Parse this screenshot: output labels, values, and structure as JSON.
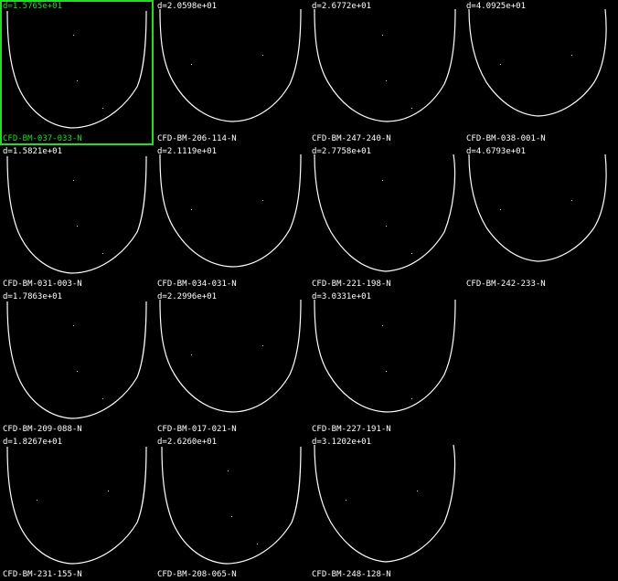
{
  "colors": {
    "background": "#000000",
    "curve": "#ffffff",
    "text": "#ffffff",
    "selected": "#22dd22"
  },
  "selected_index": 0,
  "items": [
    {
      "distance": "d=1.5765e+01",
      "label": "CFD-BM-037-033-N",
      "shape": "deep"
    },
    {
      "distance": "d=2.0598e+01",
      "label": "CFD-BM-206-114-N",
      "shape": "round"
    },
    {
      "distance": "d=2.6772e+01",
      "label": "CFD-BM-247-240-N",
      "shape": "round"
    },
    {
      "distance": "d=4.0925e+01",
      "label": "CFD-BM-038-001-N",
      "shape": "shallow"
    },
    {
      "distance": "d=1.5821e+01",
      "label": "CFD-BM-031-003-N",
      "shape": "deep"
    },
    {
      "distance": "d=2.1119e+01",
      "label": "CFD-BM-034-031-N",
      "shape": "round"
    },
    {
      "distance": "d=2.7758e+01",
      "label": "CFD-BM-221-198-N",
      "shape": "pointed"
    },
    {
      "distance": "d=4.6793e+01",
      "label": "CFD-BM-242-233-N",
      "shape": "shallow"
    },
    {
      "distance": "d=1.7863e+01",
      "label": "CFD-BM-209-088-N",
      "shape": "deep"
    },
    {
      "distance": "d=2.2996e+01",
      "label": "CFD-BM-017-021-N",
      "shape": "round"
    },
    {
      "distance": "d=3.0331e+01",
      "label": "CFD-BM-227-191-N",
      "shape": "round"
    },
    {
      "distance": "d=1.8267e+01",
      "label": "CFD-BM-231-155-N",
      "shape": "deep"
    },
    {
      "distance": "d=2.6260e+01",
      "label": "CFD-BM-208-065-N",
      "shape": "deep"
    },
    {
      "distance": "d=3.1202e+01",
      "label": "CFD-BM-248-128-N",
      "shape": "pointed"
    }
  ]
}
